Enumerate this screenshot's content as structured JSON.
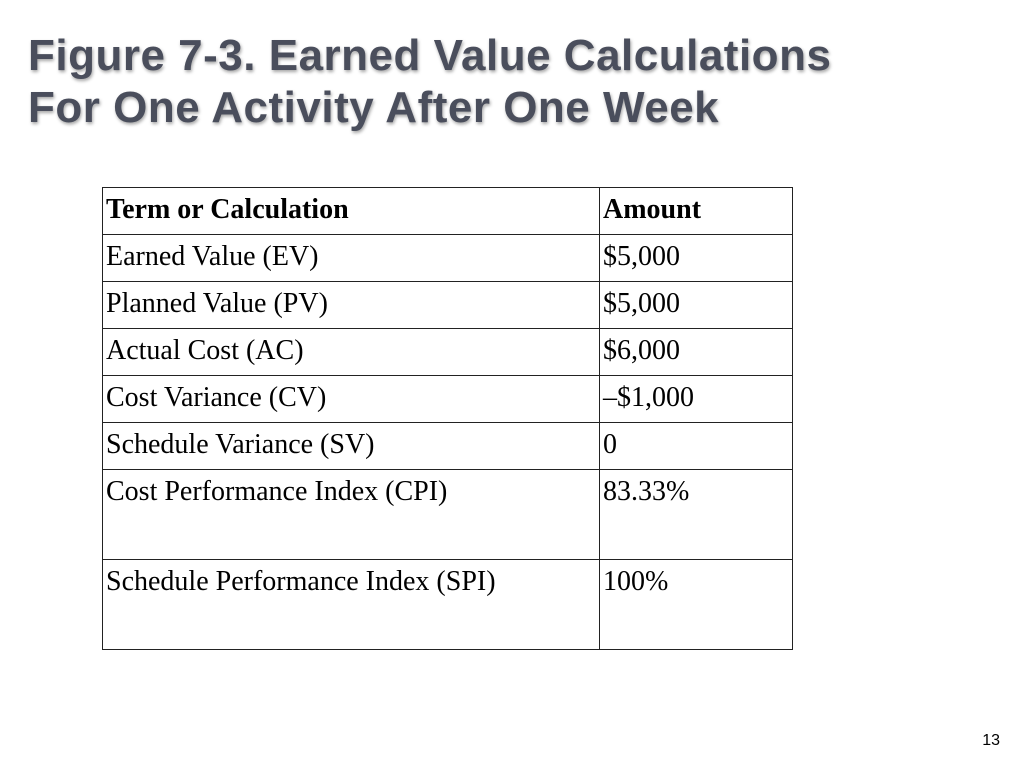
{
  "slide": {
    "title_line1": "Figure 7-3. Earned Value Calculations",
    "title_line2": "For One Activity After One Week",
    "page_number": "13"
  },
  "table": {
    "headers": [
      "Term or Calculation",
      "Amount"
    ],
    "rows": [
      {
        "term": "Earned Value (EV)",
        "amount": "$5,000"
      },
      {
        "term": "Planned Value (PV)",
        "amount": "$5,000"
      },
      {
        "term": "Actual Cost (AC)",
        "amount": "$6,000"
      },
      {
        "term": "Cost Variance (CV)",
        "amount": "–$1,000"
      },
      {
        "term": "Schedule Variance (SV)",
        "amount": "0"
      },
      {
        "term": "Cost Performance Index (CPI)",
        "amount": "83.33%"
      },
      {
        "term": "Schedule Performance Index (SPI)",
        "amount": "100%"
      }
    ]
  },
  "colors": {
    "title": "#4a4e5c",
    "text": "#000000",
    "border": "#222222",
    "background": "#ffffff"
  }
}
